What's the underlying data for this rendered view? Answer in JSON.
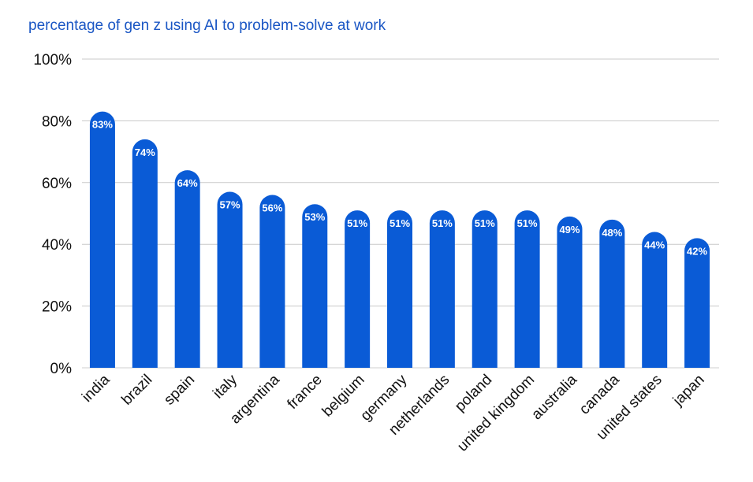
{
  "chart_data": {
    "type": "bar",
    "title": "percentage of gen z using AI to problem-solve at work",
    "xlabel": "",
    "ylabel": "",
    "ylim": [
      0,
      100
    ],
    "yticks": [
      "0%",
      "20%",
      "40%",
      "60%",
      "80%",
      "100%"
    ],
    "grid": true,
    "bar_color": "#0a5bd6",
    "categories": [
      "india",
      "brazil",
      "spain",
      "italy",
      "argentina",
      "france",
      "belgium",
      "germany",
      "netherlands",
      "poland",
      "united kingdom",
      "australia",
      "canada",
      "united states",
      "japan"
    ],
    "values": [
      83,
      74,
      64,
      57,
      56,
      53,
      51,
      51,
      51,
      51,
      51,
      49,
      48,
      44,
      42
    ],
    "labels": [
      "83%",
      "74%",
      "64%",
      "57%",
      "56%",
      "53%",
      "51%",
      "51%",
      "51%",
      "51%",
      "51%",
      "49%",
      "48%",
      "44%",
      "42%"
    ]
  }
}
